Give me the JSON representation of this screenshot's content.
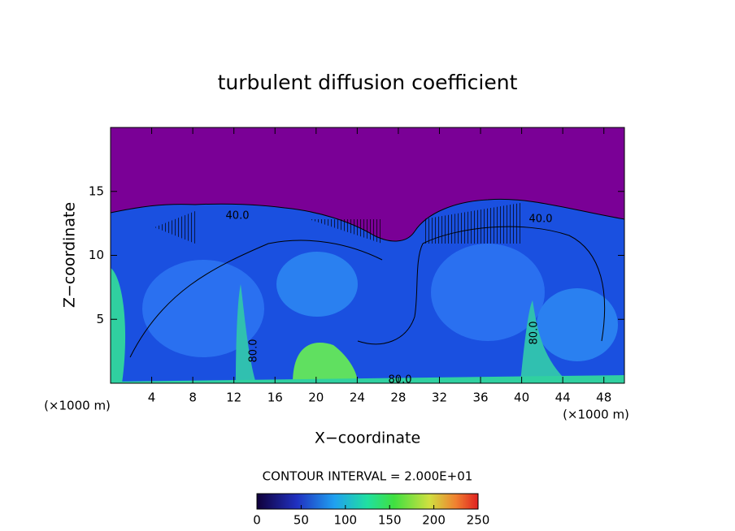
{
  "chart_data": {
    "type": "contour",
    "title": "turbulent diffusion coefficient",
    "xlabel": "X−coordinate",
    "ylabel": "Z−coordinate",
    "x_unit": "(×1000 m)",
    "xlim": [
      0,
      50
    ],
    "ylim": [
      0,
      20
    ],
    "xticks": [
      4,
      8,
      12,
      16,
      20,
      24,
      28,
      32,
      36,
      40,
      44,
      48
    ],
    "yticks": [
      5,
      10,
      15
    ],
    "contour_interval_label": "CONTOUR INTERVAL = 2.000E+01",
    "contour_labels": [
      "40.0",
      "40.0",
      "80.0",
      "80.0",
      "80.0"
    ],
    "colorbar": {
      "clim": [
        0,
        250
      ],
      "ticks": [
        0,
        50,
        100,
        150,
        200,
        250
      ]
    }
  }
}
